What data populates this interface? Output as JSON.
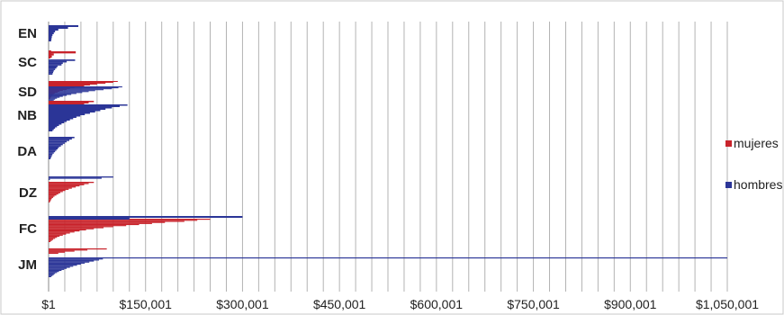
{
  "chart_data": {
    "type": "bar",
    "orientation": "horizontal",
    "title": "",
    "xlabel": "",
    "ylabel": "",
    "xlim": [
      1,
      1050001
    ],
    "x_ticks": [
      "$1",
      "$150,001",
      "$300,001",
      "$450,001",
      "$600,001",
      "$750,001",
      "$900,001",
      "$1,050,001"
    ],
    "grid": "vertical",
    "legend_position": "right",
    "categories": [
      "EN",
      "SC",
      "SD",
      "NB",
      "DA",
      "DZ",
      "FC",
      "JM"
    ],
    "series": [
      {
        "name": "mujeres",
        "color": "#c8232b"
      },
      {
        "name": "hombres",
        "color": "#2b3597"
      }
    ],
    "groups": [
      {
        "category": "EN",
        "mujeres": [
          4000,
          4000,
          3500,
          3000
        ],
        "hombres": [
          46000,
          30000,
          15000,
          10000,
          8000,
          6000,
          5000,
          4500,
          4000
        ]
      },
      {
        "category": "SC",
        "mujeres": [
          42000,
          8000,
          5000
        ],
        "hombres": [
          41000,
          28000,
          22000,
          20000,
          14000,
          12000,
          10000,
          8000,
          7000,
          6000
        ]
      },
      {
        "category": "SD",
        "mujeres": [
          107000,
          100000,
          88000,
          75000,
          64000,
          55000,
          48000,
          40000,
          33000,
          28000,
          22000,
          17000,
          14000,
          10000,
          8000,
          6000,
          5000,
          4000,
          3000,
          2500
        ],
        "hombres": [
          114000,
          108000,
          98000,
          85000,
          72000,
          62000,
          52000,
          43000,
          35000,
          28000,
          22000,
          17000,
          13000,
          10000,
          8000,
          6000,
          5000,
          4000,
          3000
        ]
      },
      {
        "category": "NB",
        "mujeres": [
          70000,
          62000,
          55000,
          48000,
          42000,
          36000,
          31000,
          26000,
          22000,
          18000,
          15000,
          12000,
          9000,
          7000
        ],
        "hombres": [
          122000,
          110000,
          98000,
          88000,
          80000,
          72000,
          64000,
          56000,
          49000,
          43000,
          38000,
          33000,
          28000,
          24000,
          20000,
          16000,
          13000,
          10000,
          8000,
          6000
        ]
      },
      {
        "category": "DA",
        "mujeres": [
          1000
        ],
        "hombres": [
          40000,
          36000,
          32000,
          28000,
          25000,
          22000,
          19000,
          16000,
          14000,
          12000,
          10000,
          8000,
          6000,
          5000,
          4000,
          3000
        ]
      },
      {
        "category": "DZ",
        "mujeres": [
          70000,
          62000,
          55000,
          48000,
          42000,
          36000,
          31000,
          26000,
          22000,
          18000,
          15000,
          12000,
          9000,
          7000,
          5000,
          4000,
          3000,
          2000
        ],
        "hombres": [
          100000,
          82000,
          2000
        ]
      },
      {
        "category": "FC",
        "mujeres": [
          250000,
          230000,
          210000,
          180000,
          160000,
          140000,
          120000,
          100000,
          85000,
          70000,
          58000,
          48000,
          40000,
          33000,
          27000,
          22000,
          17000,
          13000,
          10000,
          7000,
          5000,
          3000
        ],
        "hombres": [
          300000,
          125000
        ]
      },
      {
        "category": "JM",
        "mujeres": [
          90000,
          60000,
          40000,
          25000,
          15000
        ],
        "hombres": [
          1050000,
          84000,
          78000,
          70000,
          63000,
          56000,
          50000,
          44000,
          38000,
          33000,
          28000,
          24000,
          20000,
          16000,
          13000,
          10000,
          8000,
          6000,
          4000
        ]
      }
    ]
  }
}
